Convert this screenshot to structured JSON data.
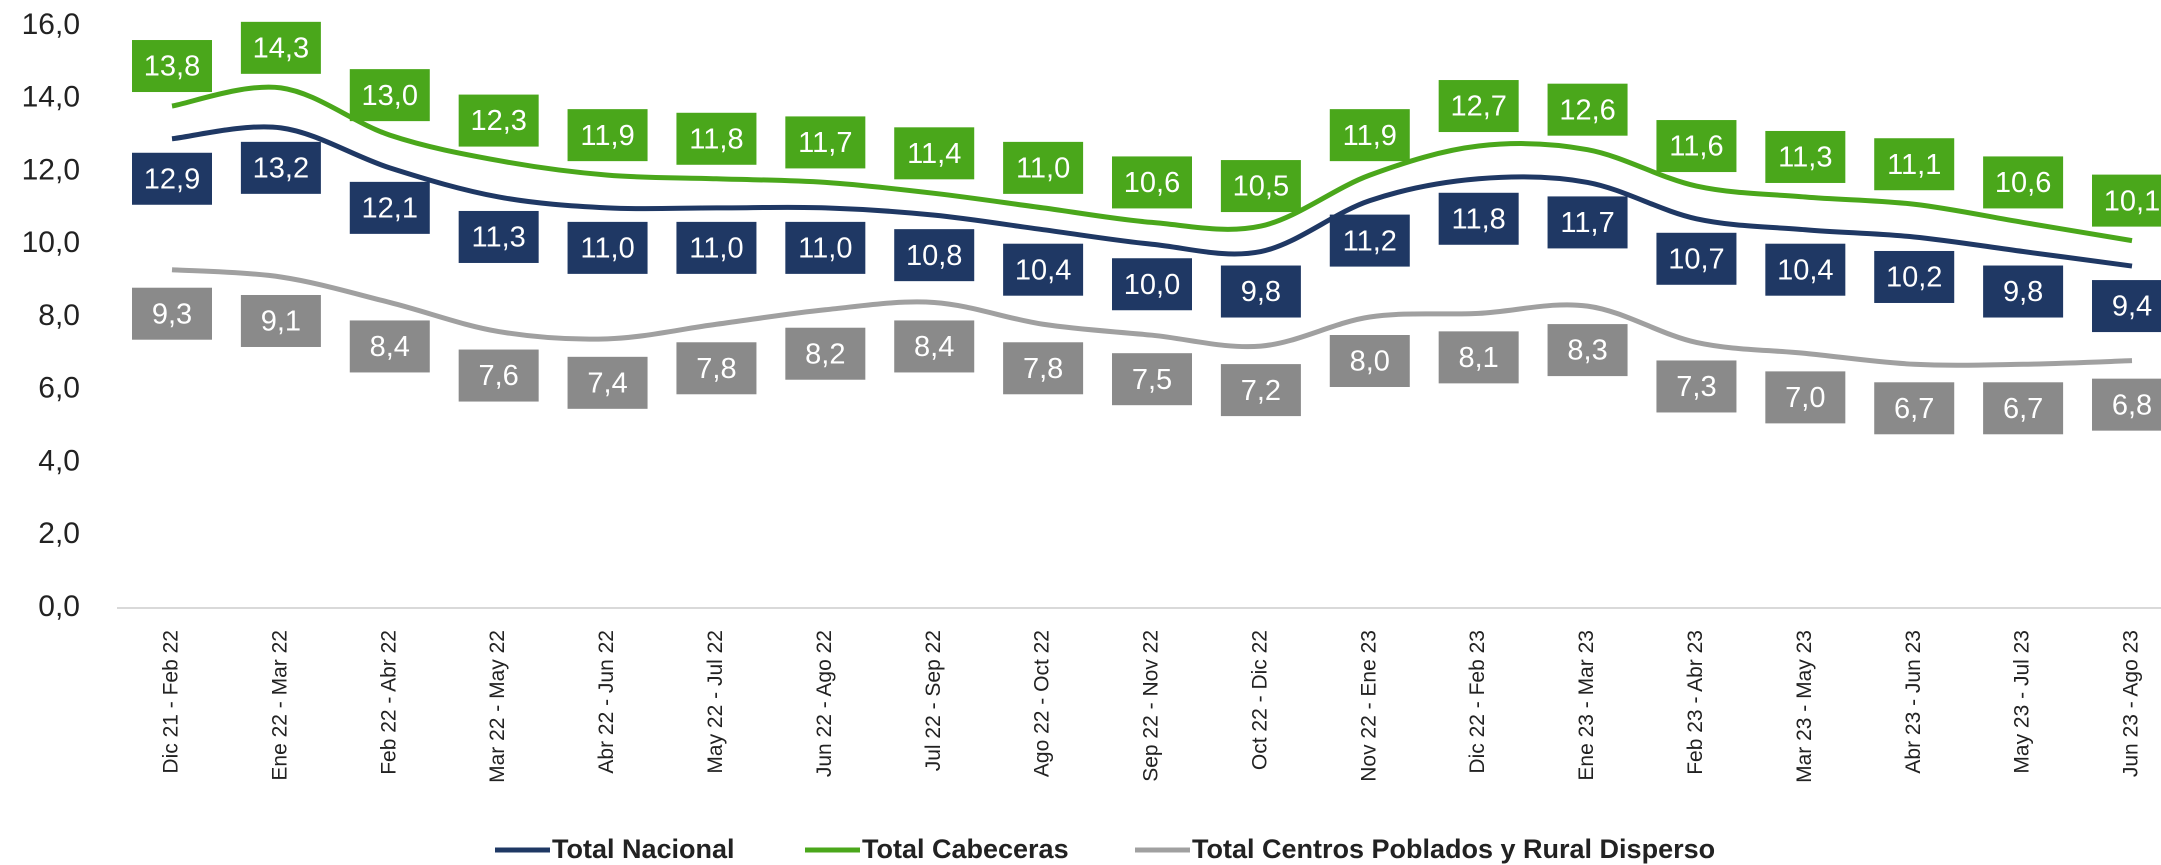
{
  "chart_data": {
    "type": "line",
    "categories": [
      "Dic 21 - Feb 22",
      "Ene 22 - Mar 22",
      "Feb 22 - Abr 22",
      "Mar 22 - May 22",
      "Abr 22 - Jun 22",
      "May 22 - Jul 22",
      "Jun 22 - Ago 22",
      "Jul 22 - Sep 22",
      "Ago 22 - Oct 22",
      "Sep 22 - Nov 22",
      "Oct 22 - Dic 22",
      "Nov 22 - Ene 23",
      "Dic 22 - Feb 23",
      "Ene 23 - Mar 23",
      "Feb 23 - Abr 23",
      "Mar 23 - May 23",
      "Abr 23 - Jun 23",
      "May 23 - Jul 23",
      "Jun 23 - Ago 23"
    ],
    "series": [
      {
        "name": "Total Nacional",
        "color": "#1f3864",
        "values": [
          12.9,
          13.2,
          12.1,
          11.3,
          11.0,
          11.0,
          11.0,
          10.8,
          10.4,
          10.0,
          9.8,
          11.2,
          11.8,
          11.7,
          10.7,
          10.4,
          10.2,
          9.8,
          9.4
        ],
        "value_labels": [
          "12,9",
          "13,2",
          "12,1",
          "11,3",
          "11,0",
          "11,0",
          "11,0",
          "10,8",
          "10,4",
          "10,0",
          "9,8",
          "11,2",
          "11,8",
          "11,7",
          "10,7",
          "10,4",
          "10,2",
          "9,8",
          "9,4"
        ]
      },
      {
        "name": "Total Cabeceras",
        "color": "#4aa71b",
        "values": [
          13.8,
          14.3,
          13.0,
          12.3,
          11.9,
          11.8,
          11.7,
          11.4,
          11.0,
          10.6,
          10.5,
          11.9,
          12.7,
          12.6,
          11.6,
          11.3,
          11.1,
          10.6,
          10.1
        ],
        "value_labels": [
          "13,8",
          "14,3",
          "13,0",
          "12,3",
          "11,9",
          "11,8",
          "11,7",
          "11,4",
          "11,0",
          "10,6",
          "10,5",
          "11,9",
          "12,7",
          "12,6",
          "11,6",
          "11,3",
          "11,1",
          "10,6",
          "10,1"
        ]
      },
      {
        "name": "Total Centros Poblados y Rural Disperso",
        "color": "#a0a0a0",
        "values": [
          9.3,
          9.1,
          8.4,
          7.6,
          7.4,
          7.8,
          8.2,
          8.4,
          7.8,
          7.5,
          7.2,
          8.0,
          8.1,
          8.3,
          7.3,
          7.0,
          6.7,
          6.7,
          6.8
        ],
        "value_labels": [
          "9,3",
          "9,1",
          "8,4",
          "7,6",
          "7,4",
          "7,8",
          "8,2",
          "8,4",
          "7,8",
          "7,5",
          "7,2",
          "8,0",
          "8,1",
          "8,3",
          "7,3",
          "7,0",
          "6,7",
          "6,7",
          "6,8"
        ]
      }
    ],
    "ylim": [
      0,
      16
    ],
    "yticks": [
      {
        "value": 0,
        "label": "0,0"
      },
      {
        "value": 2,
        "label": "2,0"
      },
      {
        "value": 4,
        "label": "4,0"
      },
      {
        "value": 6,
        "label": "6,0"
      },
      {
        "value": 8,
        "label": "8,0"
      },
      {
        "value": 10,
        "label": "10,0"
      },
      {
        "value": 12,
        "label": "12,0"
      },
      {
        "value": 14,
        "label": "14,0"
      },
      {
        "value": 16,
        "label": "16,0"
      }
    ],
    "legend": "bottom"
  }
}
